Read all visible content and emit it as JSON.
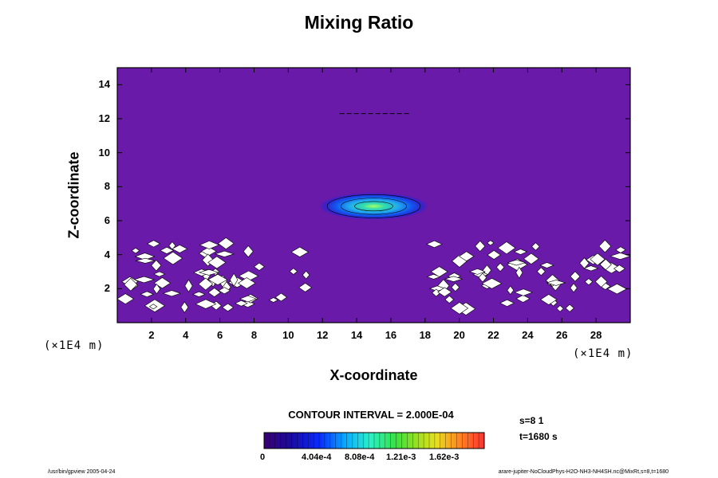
{
  "chart_data": {
    "type": "heatmap",
    "title": "Mixing Ratio",
    "xlabel": "X-coordinate",
    "ylabel": "Z-coordinate",
    "x_unit": "(×1E4 m)",
    "y_unit": "(×1E4 m)",
    "xlim": [
      0,
      30
    ],
    "ylim": [
      0,
      15
    ],
    "x_ticks": [
      2,
      4,
      6,
      8,
      10,
      12,
      14,
      16,
      18,
      20,
      22,
      24,
      26,
      28
    ],
    "y_ticks": [
      2,
      4,
      6,
      8,
      10,
      12,
      14
    ],
    "x_tick_labels": [
      "2",
      "4",
      "6",
      "8",
      "10",
      "12",
      "14",
      "16",
      "18",
      "20",
      "22",
      "24",
      "26",
      "28"
    ],
    "y_tick_labels": [
      "2",
      "4",
      "6",
      "8",
      "10",
      "12",
      "14"
    ],
    "contour_interval": "CONTOUR INTERVAL = 2.000E-04",
    "colorbar": {
      "min": 0,
      "max": 0.00202,
      "tick_labels": [
        "0",
        "4.04e-4",
        "8.08e-4",
        "1.21e-3",
        "1.62e-3"
      ]
    },
    "features": [
      {
        "kind": "cloud_layer",
        "x_center": 15,
        "z_center": 6.85,
        "x_halfwidth": 3.2,
        "z_halfwidth": 0.5,
        "peak_value": 0.0009
      },
      {
        "kind": "thin_layer",
        "x_start": 13,
        "x_end": 17,
        "z": 12.3
      }
    ],
    "colors": {
      "background_field": "#6a1aa8",
      "axes": "#000000"
    }
  },
  "annotations": {
    "s_label": "s=8 1",
    "t_label": "t=1680 s"
  },
  "footer": {
    "left": "/usr/bin/gpview 2005-04-24",
    "right": "arare-jupiter-NoCloudPhys-H2O-NH3-NH4SH.nc@MixRt,s=8,t=1680"
  }
}
